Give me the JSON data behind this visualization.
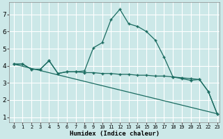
{
  "xlabel": "Humidex (Indice chaleur)",
  "bg_color": "#cce8e8",
  "grid_color": "#ffffff",
  "line_color": "#1a6b60",
  "series": [
    {
      "x": [
        0,
        1,
        2,
        3,
        4,
        5,
        6,
        7,
        8,
        9,
        10,
        11,
        12,
        13,
        14,
        15,
        16,
        17,
        18,
        19,
        20,
        21,
        22,
        23
      ],
      "y": [
        4.1,
        4.1,
        3.8,
        3.8,
        4.3,
        3.55,
        3.65,
        3.65,
        3.7,
        5.05,
        5.35,
        6.7,
        7.3,
        6.45,
        6.3,
        6.0,
        5.5,
        4.5,
        3.35,
        3.25,
        3.15,
        3.2,
        2.5,
        1.2
      ],
      "has_markers": true
    },
    {
      "x": [
        0,
        1,
        2,
        3,
        4,
        5,
        6,
        7,
        8,
        9,
        10,
        11,
        12,
        13,
        14,
        15,
        16,
        17,
        18,
        19,
        20,
        21,
        22,
        23
      ],
      "y": [
        4.1,
        4.1,
        3.8,
        3.8,
        4.3,
        3.55,
        3.65,
        3.65,
        3.6,
        3.6,
        3.55,
        3.55,
        3.5,
        3.5,
        3.45,
        3.45,
        3.4,
        3.4,
        3.35,
        3.3,
        3.25,
        3.2,
        2.5,
        1.2
      ],
      "has_markers": true
    },
    {
      "x": [
        0,
        23
      ],
      "y": [
        4.1,
        1.2
      ],
      "has_markers": false
    }
  ],
  "xlim": [
    -0.5,
    23.3
  ],
  "ylim": [
    0.7,
    7.7
  ],
  "yticks": [
    1,
    2,
    3,
    4,
    5,
    6,
    7
  ],
  "xtick_labels": [
    "0",
    "1",
    "2",
    "3",
    "4",
    "5",
    "6",
    "7",
    "8",
    "9",
    "10",
    "11",
    "12",
    "13",
    "14",
    "15",
    "16",
    "17",
    "18",
    "19",
    "20",
    "21",
    "22",
    "23"
  ],
  "marker": "+",
  "markersize": 3.5,
  "markeredgewidth": 1.0,
  "linewidth": 0.9,
  "xlabel_fontsize": 6.5,
  "ytick_fontsize": 6.5,
  "xtick_fontsize": 5.0
}
